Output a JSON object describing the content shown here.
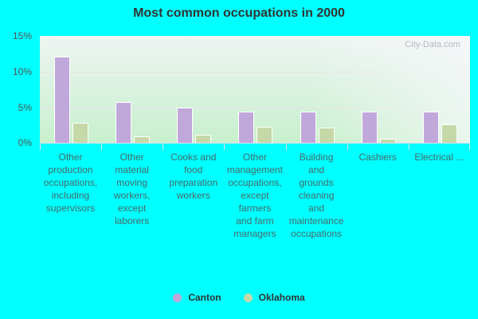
{
  "title": "Most common occupations in 2000",
  "watermark": "City-Data.com",
  "colors": {
    "canton": "#C0A8DA",
    "oklahoma": "#C5D8A8",
    "background": "#00FFFF"
  },
  "legend": [
    {
      "label": "Canton",
      "color": "#C0A8DA"
    },
    {
      "label": "Oklahoma",
      "color": "#C5D8A8"
    }
  ],
  "yticks": [
    "15%",
    "10%",
    "5%",
    "0%"
  ],
  "chart_data": {
    "type": "bar",
    "title": "Most common occupations in 2000",
    "xlabel": "",
    "ylabel": "",
    "ylim": [
      0,
      15
    ],
    "yticks": [
      "0%",
      "5%",
      "10%",
      "15%"
    ],
    "grid": true,
    "legend_position": "bottom",
    "categories": [
      "Other production occupations, including supervisors",
      "Other material moving workers, except laborers",
      "Cooks and food preparation workers",
      "Other management occupations, except farmers and farm managers",
      "Building and grounds cleaning and maintenance occupations",
      "Cashiers",
      "Electrical ..."
    ],
    "series": [
      {
        "name": "Canton",
        "values": [
          12.0,
          5.6,
          4.8,
          4.3,
          4.3,
          4.3,
          4.3
        ]
      },
      {
        "name": "Oklahoma",
        "values": [
          2.7,
          0.8,
          1.0,
          2.1,
          2.0,
          0.4,
          2.5
        ]
      }
    ]
  },
  "xlabels": [
    "Other\nproduction\noccupations,\nincluding\nsupervisors",
    "Other\nmaterial\nmoving\nworkers,\nexcept\nlaborers",
    "Cooks and\nfood\npreparation\nworkers",
    "Other\nmanagement\noccupations,\nexcept\nfarmers\nand farm\nmanagers",
    "Building\nand\ngrounds\ncleaning\nand\nmaintenance\noccupations",
    "Cashiers",
    "Electrical ..."
  ]
}
